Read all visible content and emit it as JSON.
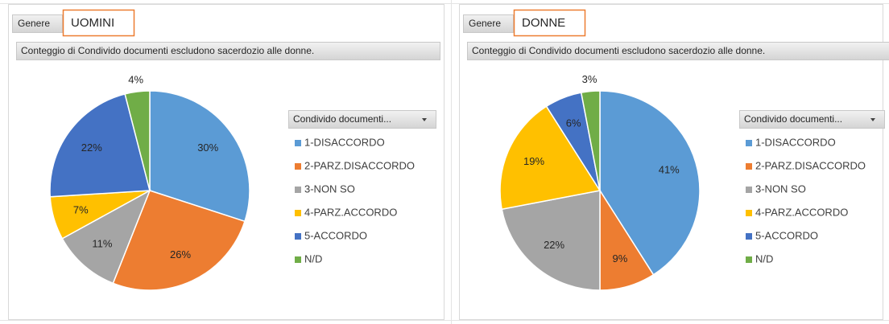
{
  "chart_data": [
    {
      "type": "pie",
      "filter_label": "Genere",
      "filter_value": "UOMINI",
      "title": "Conteggio di Condivido  documenti escludono   sacerdozio alle donne.",
      "legend_title": "Condivido  documenti...",
      "categories": [
        "1-DISACCORDO",
        "2-PARZ.DISACCORDO",
        "3-NON SO",
        "4-PARZ.ACCORDO",
        "5-ACCORDO",
        "N/D"
      ],
      "values": [
        30,
        26,
        11,
        7,
        22,
        4
      ],
      "value_labels": [
        "30%",
        "26%",
        "11%",
        "7%",
        "22%",
        "4%"
      ],
      "colors": [
        "#5b9bd5",
        "#ed7d31",
        "#a5a5a5",
        "#ffc000",
        "#4472c4",
        "#70ad47"
      ]
    },
    {
      "type": "pie",
      "filter_label": "Genere",
      "filter_value": "DONNE",
      "title": "Conteggio di Condivido  documenti escludono   sacerdozio alle donne.",
      "legend_title": "Condivido  documenti...",
      "categories": [
        "1-DISACCORDO",
        "2-PARZ.DISACCORDO",
        "3-NON SO",
        "4-PARZ.ACCORDO",
        "5-ACCORDO",
        "N/D"
      ],
      "values": [
        41,
        9,
        22,
        19,
        6,
        3
      ],
      "value_labels": [
        "41%",
        "9%",
        "22%",
        "19%",
        "6%",
        "3%"
      ],
      "colors": [
        "#5b9bd5",
        "#ed7d31",
        "#a5a5a5",
        "#ffc000",
        "#4472c4",
        "#70ad47"
      ]
    }
  ]
}
